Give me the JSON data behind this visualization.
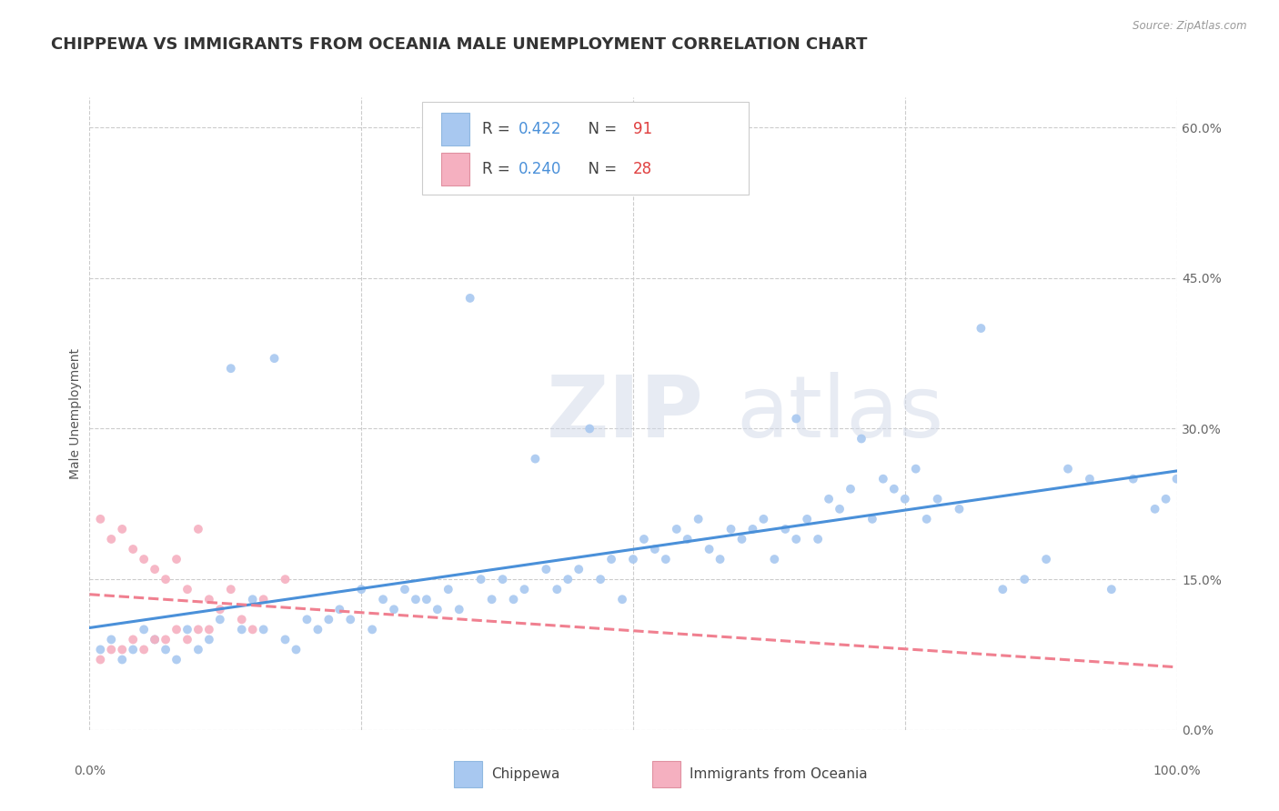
{
  "title": "CHIPPEWA VS IMMIGRANTS FROM OCEANIA MALE UNEMPLOYMENT CORRELATION CHART",
  "source": "Source: ZipAtlas.com",
  "ylabel": "Male Unemployment",
  "ytick_vals": [
    0,
    15,
    30,
    45,
    60
  ],
  "ytick_labels": [
    "0.0%",
    "15.0%",
    "30.0%",
    "45.0%",
    "60.0%"
  ],
  "xtick_labels": [
    "0.0%",
    "100.0%"
  ],
  "xmin": 0,
  "xmax": 100,
  "ymin": 0,
  "ymax": 63,
  "color_chippewa": "#a8c8f0",
  "color_oceania": "#f5b0c0",
  "color_line_chippewa": "#4a90d9",
  "color_line_oceania": "#f08090",
  "background_color": "#ffffff",
  "watermark_zip": "ZIP",
  "watermark_atlas": "atlas",
  "legend_r1": "0.422",
  "legend_n1": "91",
  "legend_r2": "0.240",
  "legend_n2": "28",
  "title_fontsize": 13,
  "label_fontsize": 10,
  "tick_fontsize": 10,
  "legend_fontsize": 12,
  "chip_x": [
    1,
    2,
    3,
    4,
    5,
    6,
    7,
    8,
    9,
    10,
    11,
    12,
    13,
    14,
    15,
    16,
    17,
    18,
    19,
    20,
    21,
    22,
    23,
    24,
    25,
    26,
    27,
    28,
    29,
    30,
    31,
    32,
    33,
    34,
    35,
    36,
    37,
    38,
    39,
    40,
    41,
    42,
    43,
    44,
    45,
    46,
    47,
    48,
    49,
    50,
    51,
    52,
    53,
    54,
    55,
    56,
    57,
    58,
    59,
    60,
    61,
    62,
    63,
    64,
    65,
    66,
    67,
    68,
    69,
    70,
    71,
    72,
    73,
    74,
    75,
    76,
    77,
    78,
    80,
    82,
    84,
    86,
    88,
    90,
    92,
    94,
    96,
    98,
    99,
    100,
    65
  ],
  "chip_y": [
    8,
    9,
    7,
    8,
    10,
    9,
    8,
    7,
    10,
    8,
    9,
    11,
    36,
    10,
    13,
    10,
    37,
    9,
    8,
    11,
    10,
    11,
    12,
    11,
    14,
    10,
    13,
    12,
    14,
    13,
    13,
    12,
    14,
    12,
    43,
    15,
    13,
    15,
    13,
    14,
    27,
    16,
    14,
    15,
    16,
    30,
    15,
    17,
    13,
    17,
    19,
    18,
    17,
    20,
    19,
    21,
    18,
    17,
    20,
    19,
    20,
    21,
    17,
    20,
    19,
    21,
    19,
    23,
    22,
    24,
    29,
    21,
    25,
    24,
    23,
    26,
    21,
    23,
    22,
    40,
    14,
    15,
    17,
    26,
    25,
    14,
    25,
    22,
    23,
    25,
    31
  ],
  "oce_x": [
    1,
    1,
    2,
    2,
    3,
    3,
    4,
    4,
    5,
    5,
    6,
    6,
    7,
    7,
    8,
    8,
    9,
    9,
    10,
    10,
    11,
    11,
    12,
    13,
    14,
    15,
    16,
    18
  ],
  "oce_y": [
    7,
    21,
    8,
    19,
    8,
    20,
    9,
    18,
    8,
    17,
    9,
    16,
    9,
    15,
    10,
    17,
    9,
    14,
    10,
    20,
    10,
    13,
    12,
    14,
    11,
    10,
    13,
    15
  ]
}
